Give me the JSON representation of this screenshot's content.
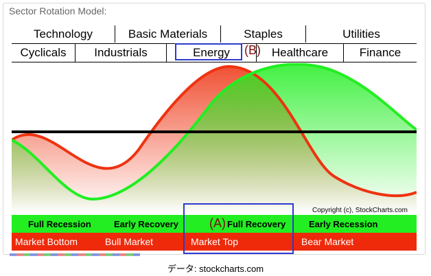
{
  "panel_title": "Sector Rotation Model:",
  "sectors_top": [
    "Technology",
    "Basic Materials",
    "Staples",
    "Utilities"
  ],
  "sectors_bottom": [
    "Cyclicals",
    "Industrials",
    "Energy",
    "Healthcare",
    "Finance"
  ],
  "annotations": {
    "a": "(A)",
    "b": "(B)"
  },
  "copyright": "Copyright (c), StockCharts.com",
  "economic_phases": [
    "Full Recession",
    "Early Recovery",
    "Full Recovery",
    "Early Recession"
  ],
  "market_phases": [
    "Market Bottom",
    "Bull Market",
    "Market Top",
    "Bear Market"
  ],
  "source": "データ: stockcharts.com",
  "colors": {
    "economy_curve": "#ee3311",
    "market_curve": "#22ee22",
    "highlight_box": "#2b3bd0",
    "annotation_text": "#7a0d0d"
  }
}
